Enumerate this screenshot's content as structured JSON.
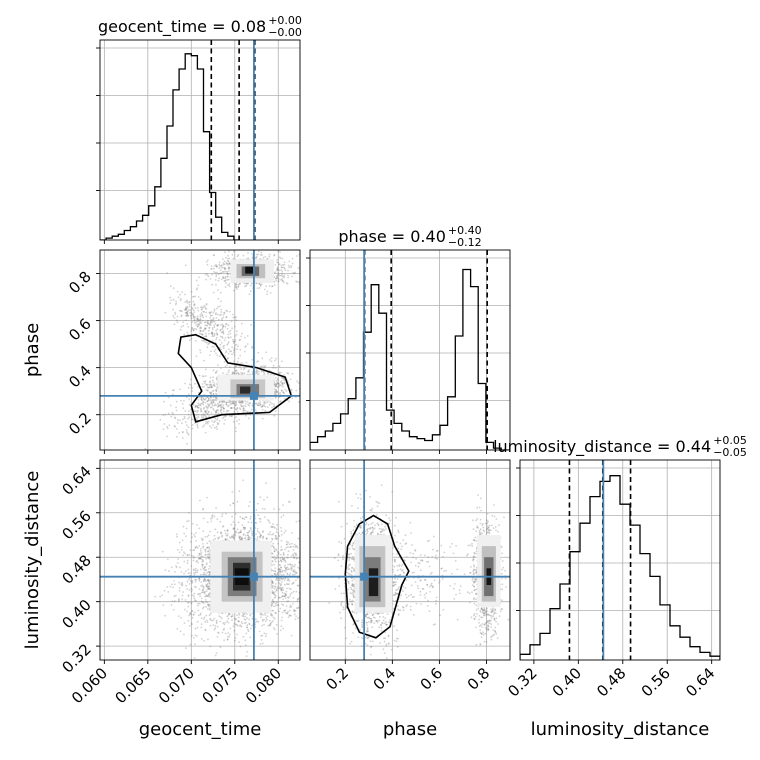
{
  "chart_data": {
    "type": "corner",
    "parameters": [
      "geocent_time",
      "phase",
      "luminosity_distance"
    ],
    "truth": {
      "geocent_time": 0.0772,
      "phase": 0.28,
      "luminosity_distance": 0.445
    },
    "truth_color": "#4682b4",
    "axes": {
      "geocent_time": {
        "range": [
          0.0595,
          0.0825
        ],
        "ticks": [
          0.06,
          0.065,
          0.07,
          0.075,
          0.08
        ],
        "tick_labels": [
          "0.060",
          "0.065",
          "0.070",
          "0.075",
          "0.080"
        ]
      },
      "phase": {
        "range": [
          0.05,
          0.9
        ],
        "ticks": [
          0.2,
          0.4,
          0.6,
          0.8
        ],
        "tick_labels": [
          "0.2",
          "0.4",
          "0.6",
          "0.8"
        ]
      },
      "luminosity_distance": {
        "range": [
          0.295,
          0.655
        ],
        "ticks": [
          0.32,
          0.4,
          0.48,
          0.56,
          0.64
        ],
        "tick_labels": [
          "0.32",
          "0.40",
          "0.48",
          "0.56",
          "0.64"
        ]
      }
    },
    "titles": [
      {
        "param": "geocent_time",
        "prefix": "geocent_time = 0.08",
        "plus": "+0.00",
        "minus": "−0.00"
      },
      {
        "param": "phase",
        "prefix": "phase = 0.40",
        "plus": "+0.40",
        "minus": "−0.12"
      },
      {
        "param": "luminosity_distance",
        "prefix": "luminosity_distance = 0.44",
        "plus": "+0.05",
        "minus": "−0.05"
      }
    ],
    "histograms": {
      "geocent_time": {
        "bin_start": 0.0595,
        "bin_width": 0.0007,
        "counts": [
          0.0,
          0.01,
          0.02,
          0.03,
          0.05,
          0.07,
          0.1,
          0.13,
          0.18,
          0.28,
          0.43,
          0.6,
          0.79,
          0.9,
          0.98,
          0.97,
          0.9,
          0.57,
          0.25,
          0.12,
          0.04,
          0.02,
          0.0
        ],
        "quantiles": [
          0.0723,
          0.0755,
          0.0773
        ]
      },
      "phase": {
        "bin_start": 0.05,
        "bin_width": 0.0325,
        "counts": [
          0.04,
          0.07,
          0.1,
          0.14,
          0.19,
          0.27,
          0.38,
          0.62,
          0.87,
          0.72,
          0.21,
          0.14,
          0.1,
          0.07,
          0.06,
          0.05,
          0.08,
          0.13,
          0.28,
          0.6,
          0.95,
          0.86,
          0.35,
          0.04,
          0.01,
          0.0
        ],
        "quantiles": [
          0.282,
          0.395,
          0.803
        ]
      },
      "luminosity_distance": {
        "bin_start": 0.295,
        "bin_width": 0.018,
        "counts": [
          0.03,
          0.08,
          0.14,
          0.27,
          0.4,
          0.57,
          0.72,
          0.86,
          0.94,
          0.97,
          0.82,
          0.71,
          0.56,
          0.44,
          0.29,
          0.18,
          0.12,
          0.07,
          0.04,
          0.02
        ],
        "quantiles": [
          0.384,
          0.444,
          0.494
        ]
      }
    }
  }
}
